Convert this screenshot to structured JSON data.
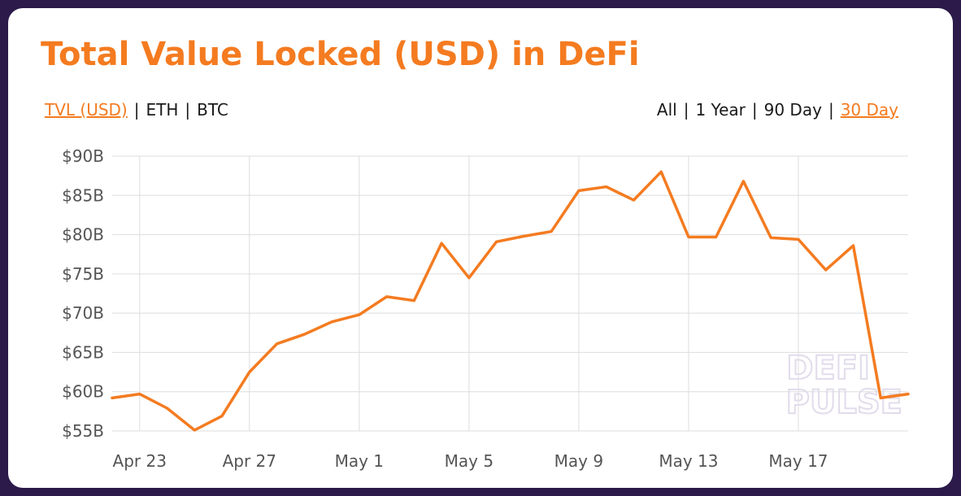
{
  "title": "Total Value Locked (USD) in DeFi",
  "metric_toggles": [
    {
      "label": "TVL (USD)",
      "active": true
    },
    {
      "label": "ETH",
      "active": false
    },
    {
      "label": "BTC",
      "active": false
    }
  ],
  "range_toggles": [
    {
      "label": "All",
      "active": false
    },
    {
      "label": "1 Year",
      "active": false
    },
    {
      "label": "90 Day",
      "active": false
    },
    {
      "label": "30 Day",
      "active": true
    }
  ],
  "separator": "|",
  "watermark": [
    "DEFI",
    "PULSE"
  ],
  "colors": {
    "accent": "#f47b20",
    "grid": "#dddddd",
    "background": "#2b1a4a"
  },
  "chart_data": {
    "type": "line",
    "x_start": "Apr 22",
    "xtick_labels": [
      "Apr 23",
      "Apr 27",
      "May 1",
      "May 5",
      "May 9",
      "May 13",
      "May 17"
    ],
    "xtick_days": [
      1,
      5,
      9,
      13,
      17,
      21,
      25
    ],
    "ytick_labels": [
      "$55B",
      "$60B",
      "$65B",
      "$70B",
      "$75B",
      "$80B",
      "$85B",
      "$90B"
    ],
    "ylim": [
      55,
      90
    ],
    "unit": "$B",
    "grid": true,
    "series": [
      {
        "values": [
          59.2,
          59.7,
          57.9,
          55.1,
          56.9,
          62.5,
          66.1,
          67.3,
          68.9,
          69.8,
          72.1,
          71.6,
          78.9,
          74.5,
          79.1,
          79.8,
          80.4,
          85.6,
          86.1,
          84.4,
          88.0,
          79.7,
          79.7,
          86.8,
          79.6,
          79.4,
          75.5,
          78.6,
          59.2,
          59.7
        ]
      }
    ]
  }
}
